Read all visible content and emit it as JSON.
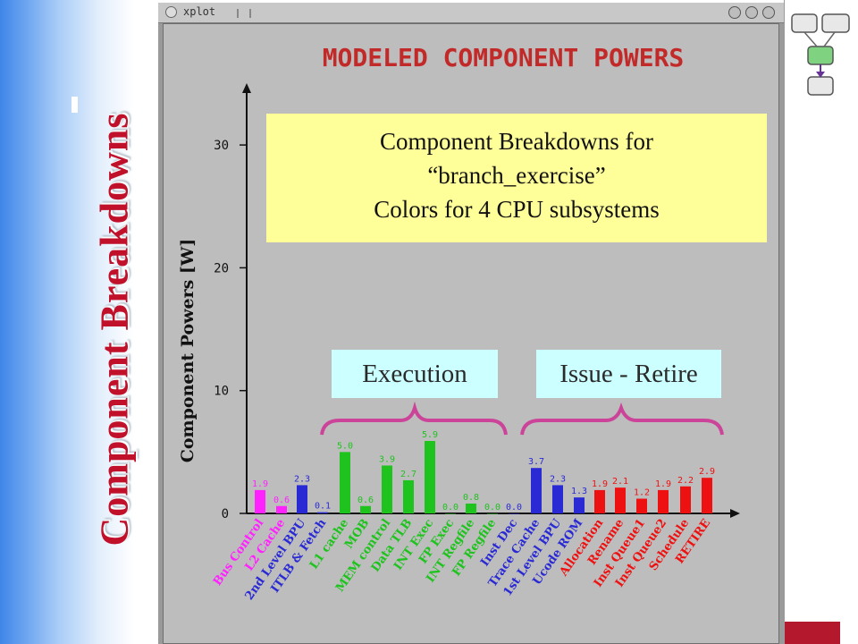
{
  "slide": {
    "side_title": "Component Breakdowns"
  },
  "window": {
    "title": "xplot"
  },
  "callout": {
    "line1": "Component Breakdowns for",
    "line2": "“branch_exercise”",
    "line3": "Colors for 4 CPU subsystems"
  },
  "groups": {
    "execution": "Execution",
    "issue_retire": "Issue - Retire"
  },
  "colors": {
    "magenta": "#ff22ff",
    "blue": "#2a2ad4",
    "green": "#1ec31e",
    "red": "#ee1111",
    "title_red": "#c22a2a",
    "callout_bg": "#ffff99",
    "group_bg": "#ccffff",
    "brace": "#cc4499",
    "plot_bg": "#bdbdbd",
    "slide_title": "#c0102a"
  },
  "chart_data": {
    "type": "bar",
    "title": "MODELED COMPONENT POWERS",
    "ylabel": "Component Powers [W]",
    "ylim": [
      0,
      33
    ],
    "yticks": [
      0,
      10,
      20,
      30
    ],
    "grid": false,
    "categories": [
      "Bus Control",
      "L2 Cache",
      "2nd Level BPU",
      "ITLB & Fetch",
      "L1 cache",
      "MOB",
      "MEM control",
      "Data TLB",
      "INT Exec",
      "FP Exec",
      "INT Regfile",
      "FP Regfile",
      "Inst Dec",
      "Trace Cache",
      "1st Level BPU",
      "Ucode ROM",
      "Allocation",
      "Rename",
      "Inst Queue1",
      "Inst Queue2",
      "Schedule",
      "RETIRE"
    ],
    "values": [
      1.9,
      0.6,
      2.3,
      0.1,
      5.0,
      0.6,
      3.9,
      2.7,
      5.9,
      0.0,
      0.8,
      0.0,
      0.0,
      3.7,
      2.3,
      1.3,
      1.9,
      2.1,
      1.2,
      1.9,
      2.2,
      2.9
    ],
    "value_labels": [
      "1.9",
      "0.6",
      "2.3",
      "0.1",
      "5.0",
      "0.6",
      "3.9",
      "2.7",
      "5.9",
      "0.0",
      "0.8",
      "0.0",
      "0.0",
      "3.7",
      "2.3",
      "1.3",
      "1.9",
      "2.1",
      "1.2",
      "1.9",
      "2.2",
      "2.9"
    ],
    "subsystem": [
      "magenta",
      "magenta",
      "blue",
      "blue",
      "green",
      "green",
      "green",
      "green",
      "green",
      "green",
      "green",
      "green",
      "blue",
      "blue",
      "blue",
      "blue",
      "red",
      "red",
      "red",
      "red",
      "red",
      "red"
    ]
  }
}
